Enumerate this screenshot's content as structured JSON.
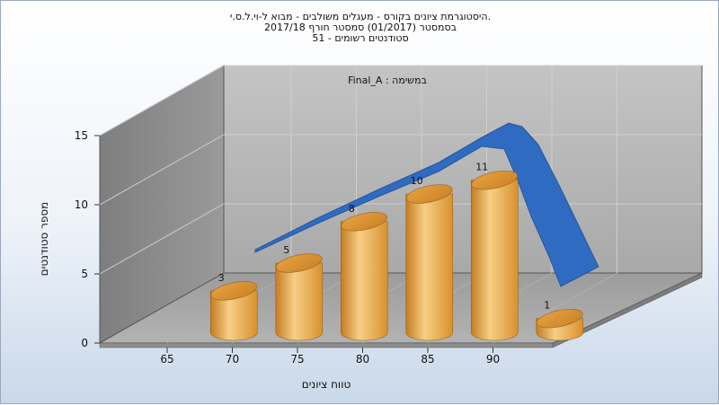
{
  "header": {
    "line1": "היסטוגרמת ציונים בקורס - מעגלים משולבים - מבוא ל-וי.ל.ס.י.",
    "line2": "בסמסטר  (01/2017)  סמסטר חורף  2017/18",
    "line3": "סטודנטים רשומים - 51"
  },
  "chart_data": {
    "type": "bar",
    "series_label": "Final_A : במשימה",
    "xlabel": "טווח ציונים",
    "ylabel": "מספר סטודנטים",
    "x_ticks": [
      "65",
      "70",
      "75",
      "80",
      "85",
      "90"
    ],
    "y_ticks": [
      "0",
      "5",
      "10",
      "15"
    ],
    "ylim": [
      0,
      15
    ],
    "bars": [
      {
        "bin_center": 67.5,
        "value": 3
      },
      {
        "bin_center": 72.5,
        "value": 5
      },
      {
        "bin_center": 77.5,
        "value": 8
      },
      {
        "bin_center": 82.5,
        "value": 10
      },
      {
        "bin_center": 87.5,
        "value": 11
      },
      {
        "bin_center": 92.5,
        "value": 1
      }
    ],
    "curve": {
      "type": "distribution-curve",
      "color": "#2f6bc0"
    },
    "bar_color": "#e8a94a",
    "grid": true
  }
}
